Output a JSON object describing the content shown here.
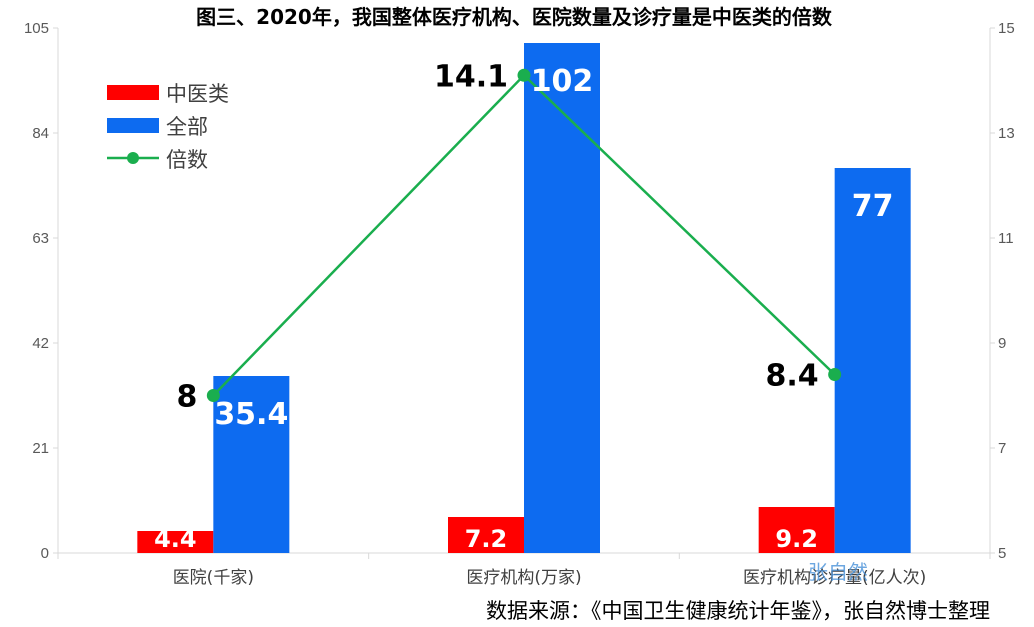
{
  "colors": {
    "tcm": "#ff0000",
    "all": "#0d6bf0",
    "ratio": "#1aae4e",
    "axis": "#d9d9d9",
    "tick_text": "#595959"
  },
  "source_note": "数据来源：《中国卫生健康统计年鉴》，张自然博士整理",
  "watermark": "张自然",
  "chart_data": {
    "type": "bar",
    "title": "图三、2020年，我国整体医疗机构、医院数量及诊疗量是中医类的倍数",
    "categories": [
      "医院(千家)",
      "医疗机构(万家)",
      "医疗机构诊疗量(亿人次)"
    ],
    "series": [
      {
        "name": "中医类",
        "type": "bar",
        "axis": "left",
        "values": [
          4.4,
          7.2,
          9.2
        ],
        "labels": [
          "4.4",
          "7.2",
          "9.2"
        ]
      },
      {
        "name": "全部",
        "type": "bar",
        "axis": "left",
        "values": [
          35.4,
          102,
          77
        ],
        "labels": [
          "35.4",
          "102",
          "77"
        ]
      },
      {
        "name": "倍数",
        "type": "line",
        "axis": "right",
        "values": [
          8,
          14.1,
          8.4
        ],
        "labels": [
          "8",
          "14.1",
          "8.4"
        ]
      }
    ],
    "left_axis": {
      "ylim": [
        0,
        105
      ],
      "ticks": [
        "0",
        "21",
        "42",
        "63",
        "84",
        "105"
      ]
    },
    "right_axis": {
      "ylim": [
        5,
        15
      ],
      "ticks": [
        "5",
        "7",
        "9",
        "11",
        "13",
        "15"
      ]
    },
    "grid": false,
    "legend_position": "top-left"
  }
}
